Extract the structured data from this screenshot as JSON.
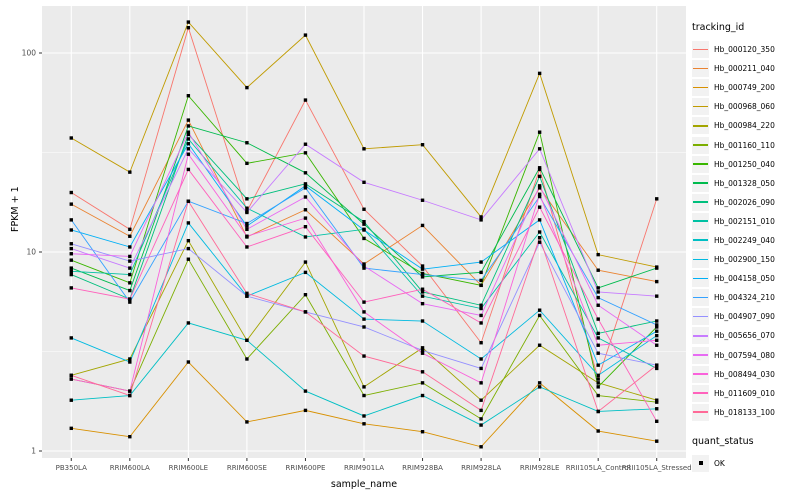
{
  "chart_data": {
    "type": "line",
    "title": "",
    "xlabel": "sample_name",
    "ylabel": "FPKM + 1",
    "y_scale": "log10",
    "ylim": [
      0.9,
      170
    ],
    "y_major_ticks": [
      1,
      10,
      100
    ],
    "y_minor_ticks": [
      3.1623,
      31.623
    ],
    "grid": "on",
    "legend_position": "right",
    "legend_title": "tracking_id",
    "quant_legend": {
      "title": "quant_status",
      "items": [
        "OK"
      ]
    },
    "point_shape": "black-square",
    "categories": [
      "PB350LA",
      "RRIM600LA",
      "RRIM600LE",
      "RRIM600SE",
      "RRIM600PE",
      "RRIM901LA",
      "RRIM928BA",
      "RRIM928LA",
      "RRIM928LE",
      "RRII105LA_Control",
      "RRII105LA_Stressed"
    ],
    "series": [
      {
        "name": "Hb_000120_350",
        "color": "#F8766D",
        "values": [
          19.9,
          13,
          134,
          16,
          58,
          16.4,
          8.5,
          3.5,
          26,
          2.3,
          18.5
        ]
      },
      {
        "name": "Hb_000211_040",
        "color": "#EA8331",
        "values": [
          17.4,
          12,
          46,
          11.9,
          16.3,
          8.7,
          13.6,
          6.8,
          21,
          8.1,
          7.1
        ]
      },
      {
        "name": "Hb_000749_200",
        "color": "#D89000",
        "values": [
          1.3,
          1.18,
          2.8,
          1.4,
          1.6,
          1.37,
          1.25,
          1.05,
          2.2,
          1.26,
          1.12
        ]
      },
      {
        "name": "Hb_000968_060",
        "color": "#C09B00",
        "values": [
          37.4,
          25.2,
          143,
          67,
          123,
          33,
          34.6,
          15,
          79,
          9.7,
          8.4
        ]
      },
      {
        "name": "Hb_000984_220",
        "color": "#A3A500",
        "values": [
          2.4,
          2.9,
          11.4,
          3.6,
          8.9,
          2.1,
          3.3,
          1.8,
          3.4,
          2.2,
          1.8
        ]
      },
      {
        "name": "Hb_001160_110",
        "color": "#7CAE00",
        "values": [
          2.3,
          2.0,
          9.2,
          2.9,
          6.1,
          1.9,
          2.2,
          1.45,
          4.8,
          1.9,
          1.76
        ]
      },
      {
        "name": "Hb_001250_040",
        "color": "#39B600",
        "values": [
          9.1,
          7.0,
          61,
          27.9,
          31.5,
          11.7,
          7.8,
          6.8,
          40,
          2.1,
          4.2
        ]
      },
      {
        "name": "Hb_001328_050",
        "color": "#00BB4E",
        "values": [
          8.3,
          6.4,
          43,
          35.4,
          25,
          13.8,
          7.5,
          7.9,
          26.5,
          6.6,
          8.3
        ]
      },
      {
        "name": "Hb_002026_090",
        "color": "#00BF7D",
        "values": [
          7.7,
          5.8,
          39,
          18.5,
          22,
          14.2,
          6.3,
          5.4,
          24,
          3.9,
          4.5
        ]
      },
      {
        "name": "Hb_002151_010",
        "color": "#00C1A3",
        "values": [
          8.0,
          7.7,
          37,
          16.6,
          11.9,
          13.0,
          6.0,
          5.2,
          12.6,
          3.7,
          2.6
        ]
      },
      {
        "name": "Hb_002249_040",
        "color": "#00BFC4",
        "values": [
          1.8,
          1.9,
          4.4,
          3.6,
          2.0,
          1.5,
          1.9,
          1.35,
          2.1,
          1.58,
          1.63
        ]
      },
      {
        "name": "Hb_002900_150",
        "color": "#00BAE0",
        "values": [
          3.7,
          2.8,
          14,
          6.0,
          7.9,
          4.6,
          4.5,
          2.9,
          5.1,
          2.4,
          3.8
        ]
      },
      {
        "name": "Hb_004158_050",
        "color": "#00B0F6",
        "values": [
          12.9,
          10.6,
          35,
          13.5,
          21.5,
          12.9,
          8.2,
          8.9,
          14.5,
          2.7,
          4.0
        ]
      },
      {
        "name": "Hb_004324_210",
        "color": "#35A2FF",
        "values": [
          14.5,
          5.6,
          18,
          13.9,
          21,
          8.3,
          7.7,
          7.2,
          19,
          5.9,
          4.3
        ]
      },
      {
        "name": "Hb_004907_090",
        "color": "#9590FF",
        "values": [
          11.0,
          9.0,
          10.4,
          6.0,
          5.0,
          4.2,
          3.2,
          2.6,
          11.2,
          3.1,
          2.7
        ]
      },
      {
        "name": "Hb_005656_070",
        "color": "#C77CFF",
        "values": [
          10.4,
          8.3,
          33,
          15.8,
          34.8,
          22.4,
          18.2,
          14.5,
          33,
          6.3,
          6.0
        ]
      },
      {
        "name": "Hb_007594_080",
        "color": "#E76BF3",
        "values": [
          9.8,
          9.5,
          40,
          13,
          18.9,
          8.5,
          5.5,
          4.8,
          21.5,
          5.4,
          3.4
        ]
      },
      {
        "name": "Hb_008494_030",
        "color": "#FA62DB",
        "values": [
          2.3,
          2.0,
          31,
          12,
          14.8,
          5.0,
          3.1,
          2.2,
          19.5,
          3.4,
          3.6
        ]
      },
      {
        "name": "Hb_011609_010",
        "color": "#FF62BC",
        "values": [
          6.6,
          5.8,
          26,
          10.6,
          13.4,
          5.6,
          6.5,
          4.4,
          16.8,
          4.6,
          1.41
        ]
      },
      {
        "name": "Hb_018133_100",
        "color": "#FF6A98",
        "values": [
          2.4,
          1.9,
          18,
          6.2,
          5.0,
          3.0,
          2.5,
          1.6,
          11.8,
          1.58,
          2.7
        ]
      }
    ],
    "theme": {
      "panel_bg": "#EBEBEB",
      "grid_major": "#FFFFFF",
      "grid_minor": "#F5F5F5",
      "tick_label_color": "#4D4D4D",
      "tick_mark_color": "#333333",
      "point_color": "#000000"
    }
  }
}
